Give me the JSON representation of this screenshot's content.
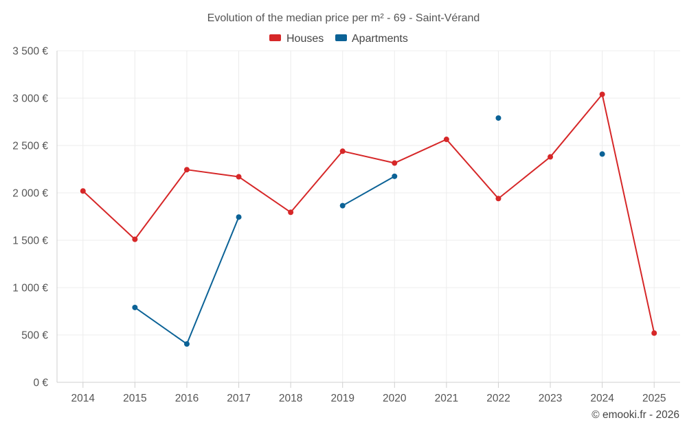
{
  "chart_data": {
    "type": "line",
    "title": "Evolution of the median price per m² - 69 - Saint-Vérand",
    "categories": [
      "2014",
      "2015",
      "2016",
      "2017",
      "2018",
      "2019",
      "2020",
      "2021",
      "2022",
      "2023",
      "2024",
      "2025"
    ],
    "ylim": [
      0,
      3500
    ],
    "yticks": [
      0,
      500,
      1000,
      1500,
      2000,
      2500,
      3000,
      3500
    ],
    "ytick_labels": [
      "0 €",
      "500 €",
      "1 000 €",
      "1 500 €",
      "2 000 €",
      "2 500 €",
      "3 000 €",
      "3 500 €"
    ],
    "grid": true,
    "legend_position": "top-center",
    "series": [
      {
        "name": "Houses",
        "color": "#d62728",
        "values": [
          2020,
          1510,
          2245,
          2170,
          1795,
          2440,
          2315,
          2565,
          1940,
          2380,
          3040,
          520
        ]
      },
      {
        "name": "Apartments",
        "color": "#0b6296",
        "values": [
          null,
          790,
          405,
          1745,
          null,
          1865,
          2175,
          null,
          2790,
          null,
          2410,
          null
        ]
      }
    ]
  },
  "credit": "© emooki.fr - 2026"
}
